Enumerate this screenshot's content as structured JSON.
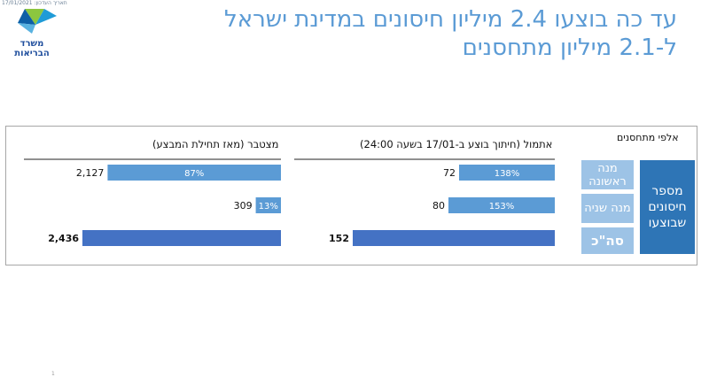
{
  "header": {
    "date_stamp": "תאריך העדכון: 17/01/2021",
    "logo_text_line1": "משרד",
    "logo_text_line2": "הבריאות",
    "title": "עד כה בוצעו 2.4 מיליון חיסונים במדינת ישראל ל-2.1 מיליון מתחסנים"
  },
  "side_panel": {
    "header": "אלפי מתחסנים",
    "first_dose": "מנה ראשונה",
    "second_dose": "מנה שניה",
    "total": "סה\"כ",
    "vaccinations_done": "מספר חיסונים שבוצעו"
  },
  "colors": {
    "light_bar": "#5b9bd5",
    "total_bar": "#4472c4",
    "title": "#5b9bd5",
    "side_light": "#9dc3e6",
    "side_dark": "#2e75b6"
  },
  "chart_data": [
    {
      "type": "bar",
      "orientation": "horizontal",
      "title": "אתמול (חיתוך בוצע ב-17/01 בשעה 24:00)",
      "categories": [
        "מנה ראשונה",
        "מנה שניה",
        "סה\"כ"
      ],
      "values": [
        72,
        80,
        152
      ],
      "value_labels": [
        "72",
        "80",
        "152"
      ],
      "percent_labels": [
        "138%",
        "153%",
        ""
      ],
      "xlim": [
        0,
        152
      ]
    },
    {
      "type": "bar",
      "orientation": "horizontal",
      "title": "מצטבר (מאז תחילת המבצע)",
      "categories": [
        "מנה ראשונה",
        "מנה שניה",
        "סה\"כ"
      ],
      "values": [
        2127,
        309,
        2436
      ],
      "value_labels": [
        "2,127",
        "309",
        "2,436"
      ],
      "percent_labels": [
        "87%",
        "13%",
        ""
      ],
      "xlim": [
        0,
        2436
      ]
    }
  ],
  "footer_mark": "1"
}
